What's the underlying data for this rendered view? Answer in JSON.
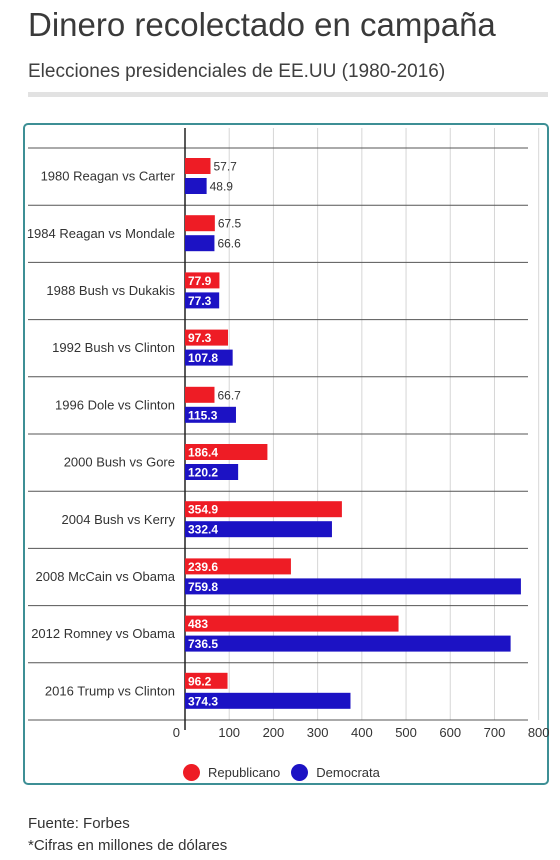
{
  "header": {
    "title": "Dinero recolectado en campaña",
    "subtitle": "Elecciones presidenciales de EE.UU (1980-2016)"
  },
  "footer": {
    "source": "Fuente: Forbes",
    "note": "*Cifras en millones de dólares"
  },
  "colors": {
    "republicano": "#ee1c25",
    "democrata": "#1c12c4",
    "panel_border": "#3d8f95"
  },
  "chart_data": {
    "type": "bar",
    "orientation": "horizontal",
    "categories": [
      "1980 Reagan vs Carter",
      "1984 Reagan vs Mondale",
      "1988 Bush vs Dukakis",
      "1992 Bush vs Clinton",
      "1996 Dole vs Clinton",
      "2000 Bush vs Gore",
      "2004 Bush vs Kerry",
      "2008 McCain vs Obama",
      "2012 Romney vs Obama",
      "2016 Trump vs Clinton"
    ],
    "series": [
      {
        "name": "Republicano",
        "color": "#ee1c25",
        "values": [
          57.7,
          67.5,
          77.9,
          97.3,
          66.7,
          186.4,
          354.9,
          239.6,
          483,
          96.2
        ]
      },
      {
        "name": "Democrata",
        "color": "#1c12c4",
        "values": [
          48.9,
          66.6,
          77.3,
          107.8,
          115.3,
          120.2,
          332.4,
          759.8,
          736.5,
          374.3
        ]
      }
    ],
    "xlim": [
      0,
      800
    ],
    "xticks": [
      "0",
      "100",
      "200",
      "300",
      "400",
      "500",
      "600",
      "700",
      "800"
    ],
    "grid": true,
    "legend_position": "bottom"
  }
}
